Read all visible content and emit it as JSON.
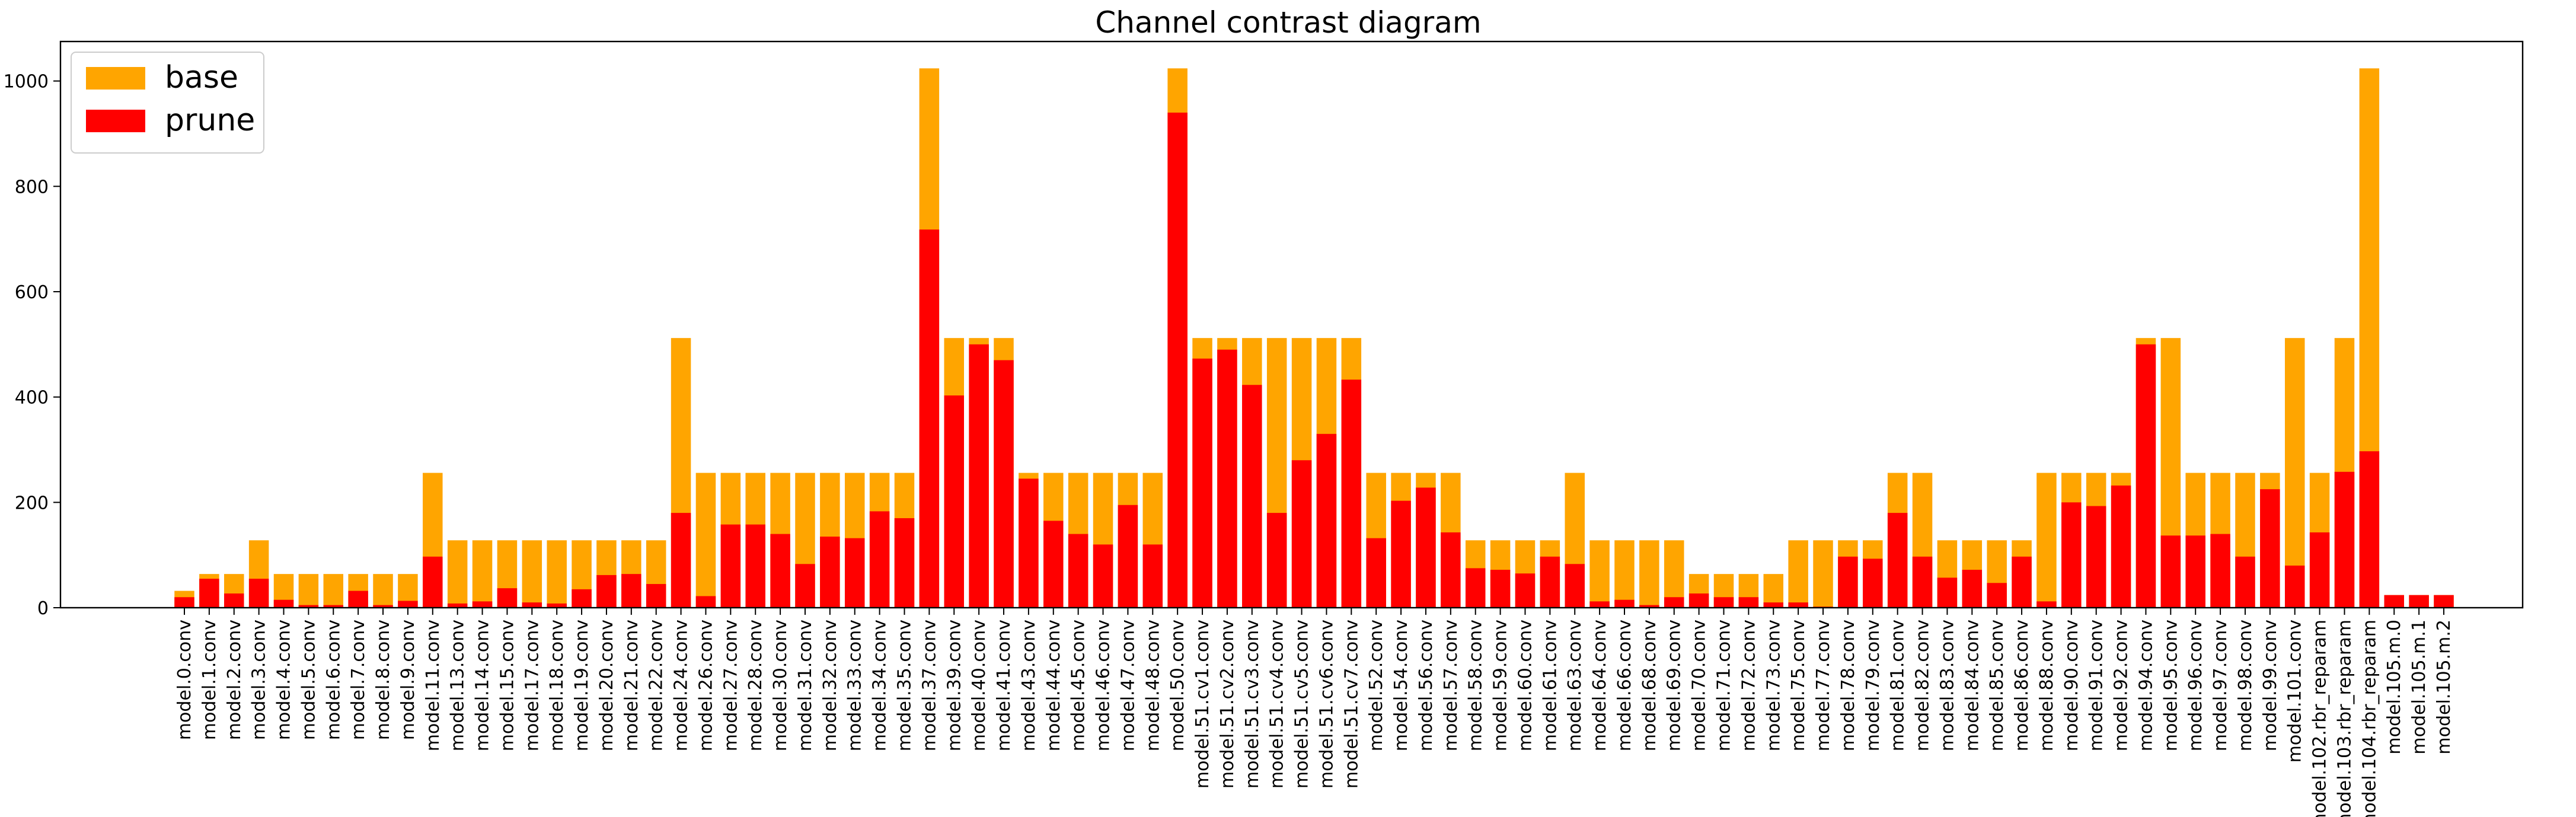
{
  "chart_data": {
    "type": "bar",
    "title": "Channel contrast diagram",
    "xlabel": "",
    "ylabel": "",
    "ylim": [
      0,
      1075
    ],
    "yticks": [
      0,
      200,
      400,
      600,
      800,
      1000
    ],
    "legend_position": "upper-left",
    "grid": false,
    "bar_mode": "overlay",
    "categories": [
      "model.0.conv",
      "model.1.conv",
      "model.2.conv",
      "model.3.conv",
      "model.4.conv",
      "model.5.conv",
      "model.6.conv",
      "model.7.conv",
      "model.8.conv",
      "model.9.conv",
      "model.11.conv",
      "model.13.conv",
      "model.14.conv",
      "model.15.conv",
      "model.17.conv",
      "model.18.conv",
      "model.19.conv",
      "model.20.conv",
      "model.21.conv",
      "model.22.conv",
      "model.24.conv",
      "model.26.conv",
      "model.27.conv",
      "model.28.conv",
      "model.30.conv",
      "model.31.conv",
      "model.32.conv",
      "model.33.conv",
      "model.34.conv",
      "model.35.conv",
      "model.37.conv",
      "model.39.conv",
      "model.40.conv",
      "model.41.conv",
      "model.43.conv",
      "model.44.conv",
      "model.45.conv",
      "model.46.conv",
      "model.47.conv",
      "model.48.conv",
      "model.50.conv",
      "model.51.cv1.conv",
      "model.51.cv2.conv",
      "model.51.cv3.conv",
      "model.51.cv4.conv",
      "model.51.cv5.conv",
      "model.51.cv6.conv",
      "model.51.cv7.conv",
      "model.52.conv",
      "model.54.conv",
      "model.56.conv",
      "model.57.conv",
      "model.58.conv",
      "model.59.conv",
      "model.60.conv",
      "model.61.conv",
      "model.63.conv",
      "model.64.conv",
      "model.66.conv",
      "model.68.conv",
      "model.69.conv",
      "model.70.conv",
      "model.71.conv",
      "model.72.conv",
      "model.73.conv",
      "model.75.conv",
      "model.77.conv",
      "model.78.conv",
      "model.79.conv",
      "model.81.conv",
      "model.82.conv",
      "model.83.conv",
      "model.84.conv",
      "model.85.conv",
      "model.86.conv",
      "model.88.conv",
      "model.90.conv",
      "model.91.conv",
      "model.92.conv",
      "model.94.conv",
      "model.95.conv",
      "model.96.conv",
      "model.97.conv",
      "model.98.conv",
      "model.99.conv",
      "model.101.conv",
      "model.102.rbr_reparam",
      "model.103.rbr_reparam",
      "model.104.rbr_reparam",
      "model.105.m.0",
      "model.105.m.1",
      "model.105.m.2"
    ],
    "series": [
      {
        "name": "base",
        "color": "#FFA500",
        "values": [
          32,
          64,
          64,
          128,
          64,
          64,
          64,
          64,
          64,
          64,
          256,
          128,
          128,
          128,
          128,
          128,
          128,
          128,
          128,
          128,
          512,
          256,
          256,
          256,
          256,
          256,
          256,
          256,
          256,
          256,
          1024,
          512,
          512,
          512,
          256,
          256,
          256,
          256,
          256,
          256,
          1024,
          512,
          512,
          512,
          512,
          512,
          512,
          512,
          256,
          256,
          256,
          256,
          128,
          128,
          128,
          128,
          256,
          128,
          128,
          128,
          128,
          64,
          64,
          64,
          64,
          128,
          128,
          128,
          128,
          256,
          256,
          128,
          128,
          128,
          128,
          256,
          256,
          256,
          256,
          512,
          512,
          256,
          256,
          256,
          256,
          512,
          256,
          512,
          1024,
          24,
          24,
          24
        ]
      },
      {
        "name": "prune",
        "color": "#FF0000",
        "values": [
          20,
          55,
          27,
          55,
          15,
          5,
          5,
          32,
          5,
          13,
          97,
          8,
          12,
          37,
          10,
          8,
          35,
          62,
          64,
          45,
          180,
          22,
          158,
          158,
          140,
          83,
          135,
          132,
          183,
          170,
          718,
          403,
          500,
          470,
          245,
          165,
          140,
          120,
          195,
          120,
          940,
          473,
          490,
          423,
          180,
          280,
          330,
          433,
          132,
          203,
          228,
          143,
          75,
          72,
          65,
          97,
          83,
          12,
          15,
          5,
          20,
          27,
          20,
          20,
          10,
          10,
          2,
          97,
          93,
          180,
          97,
          57,
          72,
          47,
          97,
          12,
          200,
          193,
          232,
          500,
          137,
          137,
          140,
          97,
          225,
          80,
          143,
          258,
          297,
          24,
          24,
          24
        ]
      }
    ]
  }
}
